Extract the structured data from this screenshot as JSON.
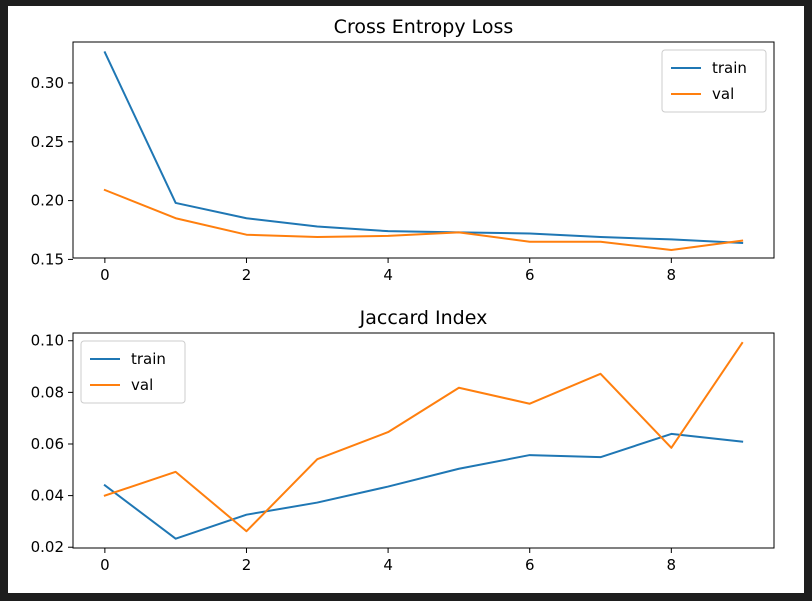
{
  "colors": {
    "train": "#1f77b4",
    "val": "#ff7f0e",
    "window_bg": "#1e1e1e"
  },
  "chart_data": [
    {
      "type": "line",
      "title": "Cross Entropy Loss",
      "xlabel": "",
      "ylabel": "",
      "x": [
        0,
        1,
        2,
        3,
        4,
        5,
        6,
        7,
        8,
        9
      ],
      "series": [
        {
          "name": "train",
          "color": "#1f77b4",
          "values": [
            0.326,
            0.198,
            0.185,
            0.178,
            0.174,
            0.173,
            0.172,
            0.169,
            0.167,
            0.164
          ]
        },
        {
          "name": "val",
          "color": "#ff7f0e",
          "values": [
            0.209,
            0.185,
            0.171,
            0.169,
            0.17,
            0.173,
            0.165,
            0.165,
            0.158,
            0.166
          ]
        }
      ],
      "xticks": [
        0,
        2,
        4,
        6,
        8
      ],
      "xtick_labels": [
        "0",
        "2",
        "4",
        "6",
        "8"
      ],
      "yticks": [
        0.15,
        0.2,
        0.25,
        0.3
      ],
      "ytick_labels": [
        "0.15",
        "0.20",
        "0.25",
        "0.30"
      ],
      "xlim": [
        -0.45,
        9.45
      ],
      "ylim": [
        0.1512,
        0.3348
      ],
      "grid": false,
      "legend": "top-right"
    },
    {
      "type": "line",
      "title": "Jaccard Index",
      "xlabel": "",
      "ylabel": "",
      "x": [
        0,
        1,
        2,
        3,
        4,
        5,
        6,
        7,
        8,
        9
      ],
      "series": [
        {
          "name": "train",
          "color": "#1f77b4",
          "values": [
            0.044,
            0.0233,
            0.0326,
            0.0373,
            0.0435,
            0.0504,
            0.0557,
            0.0549,
            0.0639,
            0.0609
          ]
        },
        {
          "name": "val",
          "color": "#ff7f0e",
          "values": [
            0.04,
            0.0492,
            0.0262,
            0.0541,
            0.0646,
            0.0818,
            0.0756,
            0.0872,
            0.0585,
            0.0991
          ]
        }
      ],
      "xticks": [
        0,
        2,
        4,
        6,
        8
      ],
      "xtick_labels": [
        "0",
        "2",
        "4",
        "6",
        "8"
      ],
      "yticks": [
        0.02,
        0.04,
        0.06,
        0.08,
        0.1
      ],
      "ytick_labels": [
        "0.02",
        "0.04",
        "0.06",
        "0.08",
        "0.10"
      ],
      "xlim": [
        -0.45,
        9.45
      ],
      "ylim": [
        0.0197,
        0.103
      ],
      "grid": false,
      "legend": "top-left"
    }
  ]
}
